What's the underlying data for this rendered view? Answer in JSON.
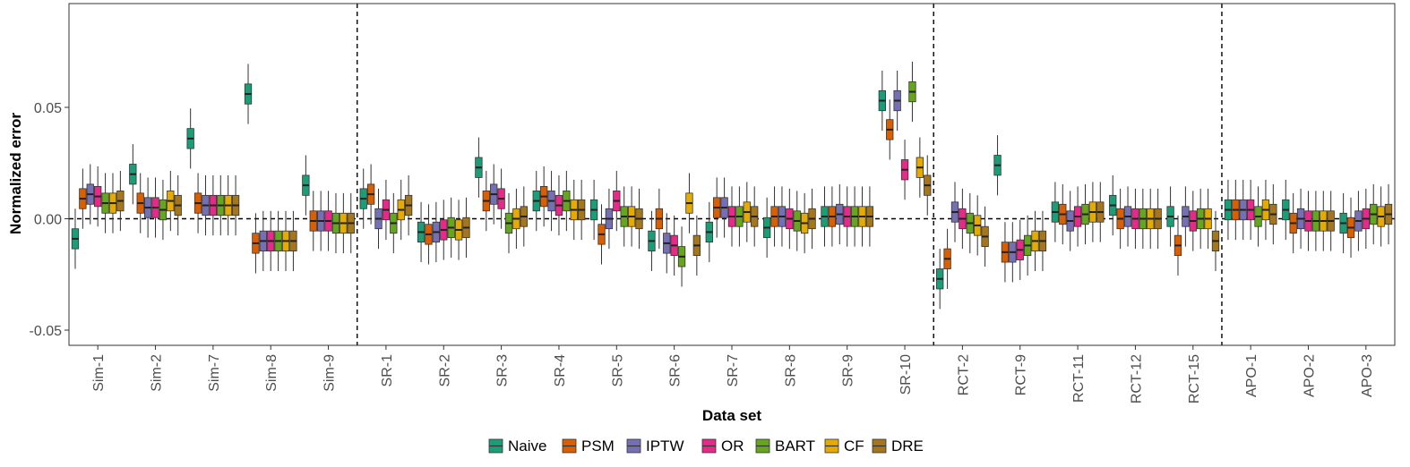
{
  "chart_data": {
    "type": "box",
    "xlabel": "Data set",
    "ylabel": "Normalized error",
    "ylim": [
      -0.056,
      0.096
    ],
    "yticks": [
      -0.05,
      0.0,
      0.05
    ],
    "ytick_labels": [
      "-0.05",
      "0.00",
      "0.05"
    ],
    "reference_line_y": 0.0,
    "group_separators_after": [
      "Sim-9",
      "SR-10",
      "RCT-15"
    ],
    "legend_position": "bottom",
    "categories": [
      "Sim-1",
      "Sim-2",
      "Sim-7",
      "Sim-8",
      "Sim-9",
      "SR-1",
      "SR-2",
      "SR-3",
      "SR-4",
      "SR-5",
      "SR-6",
      "SR-7",
      "SR-8",
      "SR-9",
      "SR-10",
      "RCT-2",
      "RCT-9",
      "RCT-11",
      "RCT-12",
      "RCT-15",
      "APO-1",
      "APO-2",
      "APO-3"
    ],
    "series": [
      {
        "name": "Naive",
        "color": "#1b9e77",
        "medians": [
          -0.009,
          0.02,
          0.036,
          0.056,
          0.015,
          0.009,
          -0.006,
          0.023,
          0.008,
          0.004,
          -0.01,
          -0.006,
          -0.004,
          0.001,
          0.053,
          -0.027,
          0.024,
          0.003,
          0.006,
          0.001,
          0.004,
          0.004,
          -0.002
        ]
      },
      {
        "name": "PSM",
        "color": "#d95f02",
        "medians": [
          0.009,
          0.007,
          0.007,
          -0.011,
          -0.001,
          0.011,
          -0.007,
          0.008,
          0.01,
          -0.007,
          0.0,
          0.005,
          0.001,
          0.001,
          0.04,
          -0.018,
          -0.015,
          0.002,
          0.0,
          -0.012,
          0.004,
          -0.002,
          -0.004
        ]
      },
      {
        "name": "IPTW",
        "color": "#7570b3",
        "medians": [
          0.011,
          0.005,
          0.006,
          -0.01,
          -0.001,
          0.0,
          -0.006,
          0.011,
          0.008,
          0.0,
          -0.011,
          0.005,
          0.001,
          0.002,
          0.053,
          0.003,
          -0.015,
          -0.001,
          0.001,
          0.001,
          0.004,
          0.0,
          -0.001
        ]
      },
      {
        "name": "OR",
        "color": "#e7298a",
        "medians": [
          0.01,
          0.005,
          0.006,
          -0.01,
          -0.001,
          0.004,
          -0.005,
          0.009,
          0.006,
          0.008,
          -0.012,
          0.001,
          0.0,
          0.001,
          0.022,
          0.0,
          -0.014,
          0.001,
          0.0,
          -0.001,
          0.004,
          -0.001,
          0.0
        ]
      },
      {
        "name": "BART",
        "color": "#66a61e",
        "medians": [
          0.007,
          0.004,
          0.006,
          -0.01,
          -0.002,
          -0.002,
          -0.004,
          -0.002,
          0.008,
          0.001,
          -0.017,
          0.001,
          -0.001,
          0.001,
          0.057,
          -0.002,
          -0.012,
          0.002,
          0.0,
          0.0,
          0.001,
          -0.001,
          0.002
        ]
      },
      {
        "name": "CF",
        "color": "#e6ab02",
        "medians": [
          0.007,
          0.008,
          0.006,
          -0.01,
          -0.002,
          0.004,
          -0.005,
          0.0,
          0.004,
          0.001,
          0.007,
          0.003,
          -0.002,
          0.001,
          0.023,
          -0.003,
          -0.01,
          0.003,
          0.0,
          0.0,
          0.004,
          -0.001,
          0.001
        ]
      },
      {
        "name": "DRE",
        "color": "#a6761d",
        "medians": [
          0.008,
          0.006,
          0.006,
          -0.01,
          -0.002,
          0.006,
          -0.004,
          0.001,
          0.004,
          0.0,
          -0.012,
          0.001,
          0.0,
          0.001,
          0.015,
          -0.008,
          -0.01,
          0.003,
          0.0,
          -0.01,
          0.002,
          -0.001,
          0.002
        ]
      }
    ]
  }
}
